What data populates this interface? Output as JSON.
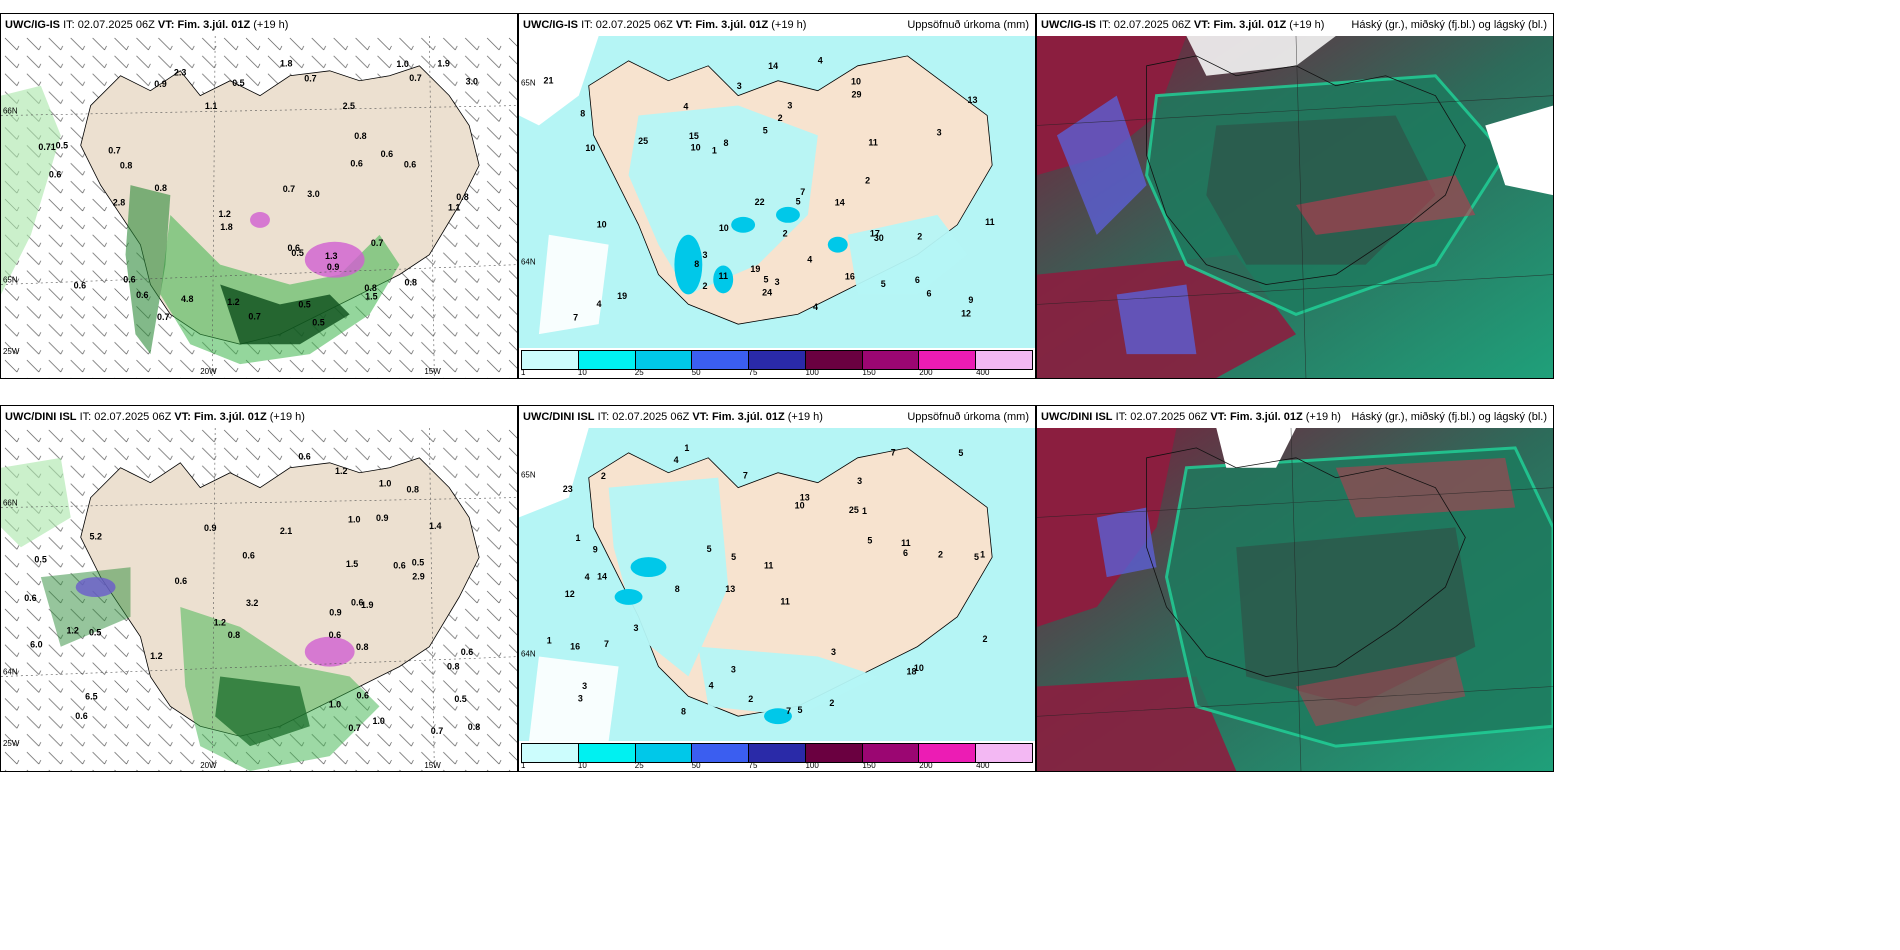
{
  "rows": [
    {
      "model": "UWC/IG-IS",
      "it_label": "IT:",
      "it_value": "02.07.2025 06Z",
      "vt_label": "VT:",
      "vt_value": "Fim. 3.júl. 01Z",
      "lead": "(+19 h)",
      "left_labels": [
        "0.5",
        "0.9",
        "0.6",
        "0.7",
        "0.6",
        "0.5",
        "1.1",
        "0.8",
        "1.8",
        "0.6",
        "0.6",
        "0.71",
        "1.2",
        "0.6",
        "0.6",
        "1.0",
        "0.6",
        "0.7",
        "0.7",
        "0.6",
        "0.8",
        "0.5",
        "0.7",
        "1.5",
        "3.0",
        "0.8",
        "2.8",
        "0.8",
        "0.7",
        "1.1",
        "0.9",
        "1.9",
        "2.5",
        "4.8",
        "2.3",
        "1.2",
        "1.8",
        "0.5",
        "0.8",
        "1.3",
        "0.5",
        "0.7",
        "3.0",
        "0.8",
        "0.7"
      ],
      "middle_labels": [
        "4",
        "2",
        "7",
        "2",
        "3",
        "4",
        "6",
        "10",
        "5",
        "8",
        "12",
        "10",
        "11",
        "14",
        "16",
        "15",
        "17",
        "10",
        "22",
        "13",
        "21",
        "19",
        "24",
        "14",
        "30",
        "29",
        "8",
        "2",
        "3",
        "4",
        "6",
        "10",
        "3",
        "7",
        "5",
        "4",
        "5",
        "11",
        "10",
        "19",
        "25",
        "3",
        "4",
        "2",
        "2",
        "1",
        "5",
        "3",
        "11",
        "9",
        "8"
      ]
    },
    {
      "model": "UWC/DINI ISL",
      "it_label": "IT:",
      "it_value": "02.07.2025 06Z",
      "vt_label": "VT:",
      "vt_value": "Fim. 3.júl. 01Z",
      "lead": "(+19 h)",
      "left_labels": [
        "0.6",
        "0.6",
        "0.6",
        "0.8",
        "1.0",
        "0.9",
        "0.5",
        "0.6",
        "0.5",
        "1.0",
        "0.6",
        "0.9",
        "6.0",
        "0.8",
        "1.2",
        "0.7",
        "0.8",
        "1.2",
        "1.0",
        "0.9",
        "0.8",
        "0.6",
        "1.5",
        "1.2",
        "2.9",
        "6.5",
        "5.2",
        "1.0",
        "0.8",
        "0.5",
        "1.4",
        "0.6",
        "0.5",
        "0.6",
        "0.6",
        "0.6",
        "2.1",
        "3.2",
        "1.9",
        "0.7",
        "1.2"
      ],
      "middle_labels": [
        "1",
        "3",
        "5",
        "13",
        "11",
        "14",
        "23",
        "25",
        "12",
        "10",
        "11",
        "3",
        "4",
        "8",
        "7",
        "5",
        "3",
        "7",
        "5",
        "3",
        "9",
        "4",
        "1",
        "2",
        "1",
        "1",
        "5",
        "6",
        "10",
        "16",
        "18",
        "13",
        "7",
        "5",
        "3",
        "2",
        "11",
        "4",
        "5",
        "7",
        "3",
        "8",
        "2",
        "2",
        "2",
        "1"
      ]
    }
  ],
  "middle_title": "Uppsöfnuð úrkoma (mm)",
  "right_title": "Háský (gr.), miðský (fj.bl.) og lágský (bl.)",
  "legend": {
    "colors": [
      "#ccfdfd",
      "#00f1f1",
      "#00c8e9",
      "#3b5ef0",
      "#2a2aa8",
      "#6a0040",
      "#9b0672",
      "#ec1cb4",
      "#f3b8f3"
    ],
    "ticks": [
      "1",
      "10",
      "25",
      "50",
      "75",
      "100",
      "150",
      "200",
      "400"
    ]
  },
  "axis": {
    "left_lat": [
      "66N",
      "65N",
      "64N"
    ],
    "left_lon": [
      "25W",
      "20W",
      "15W"
    ],
    "mid_lat": [
      "65N",
      "64N"
    ]
  }
}
